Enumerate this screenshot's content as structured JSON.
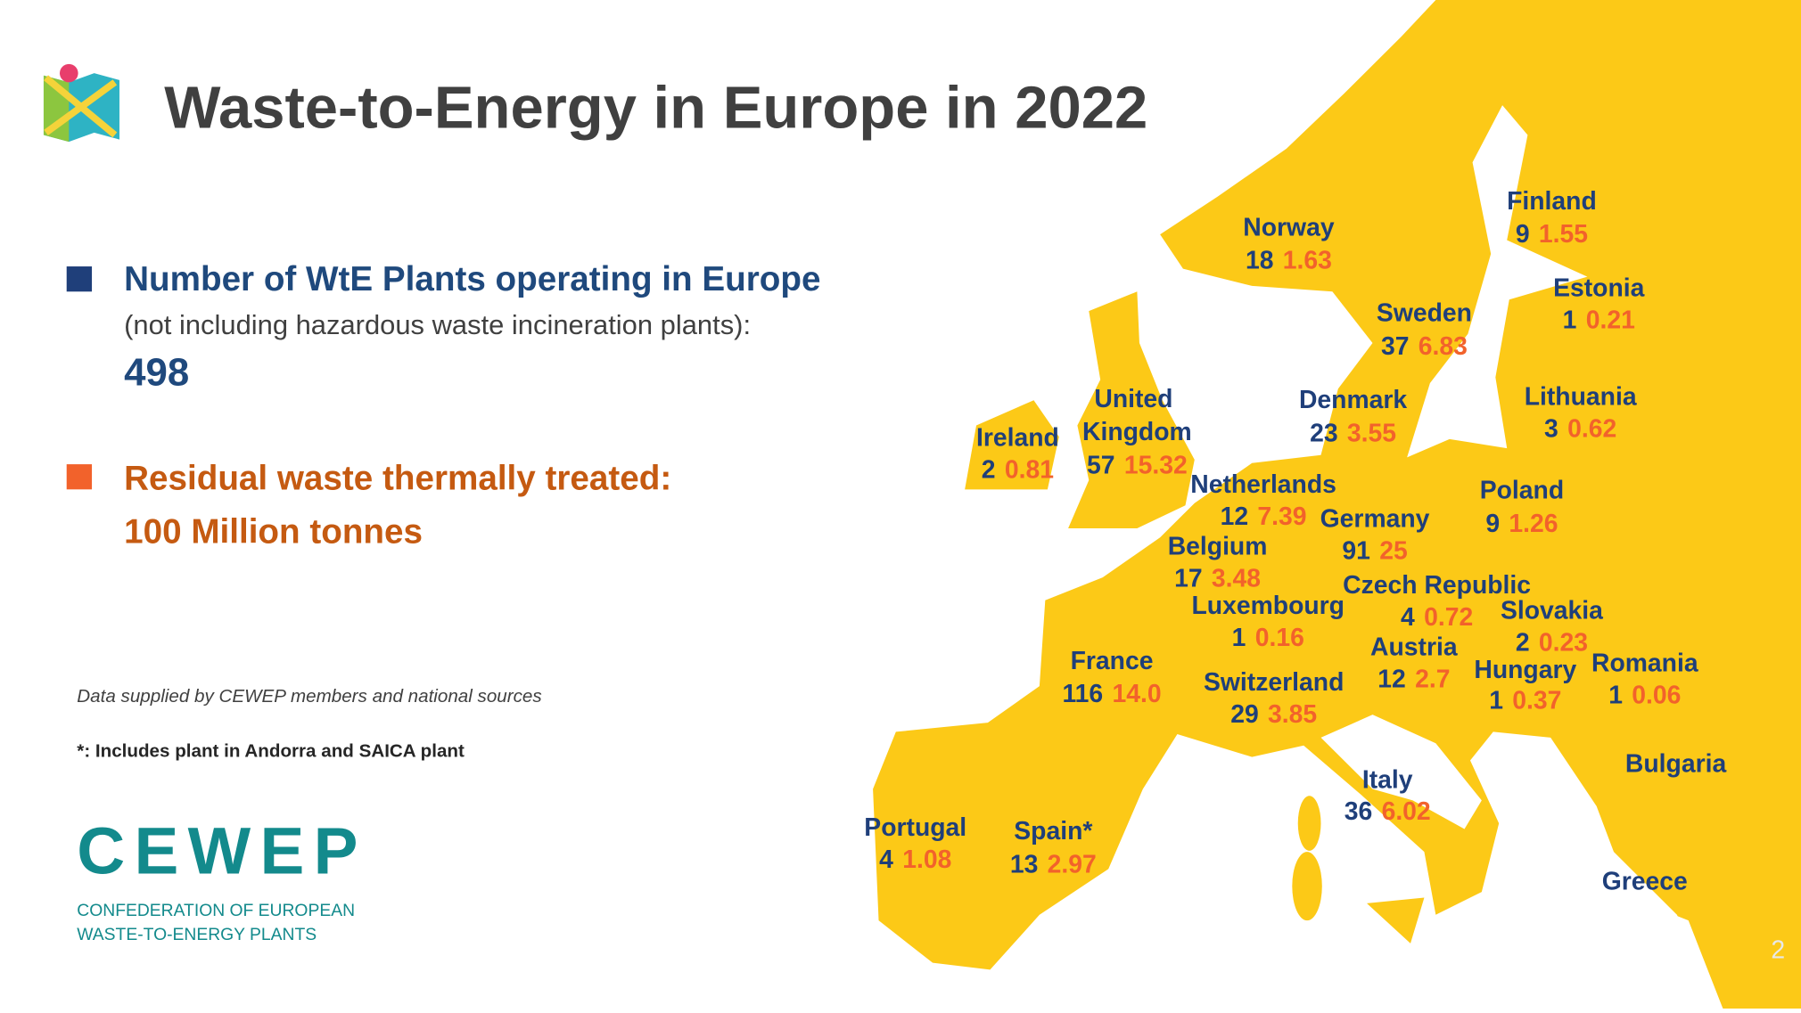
{
  "header": {
    "title": "Waste-to-Energy in Europe in 2022"
  },
  "stats": [
    {
      "label": "Number of WtE Plants operating in Europe",
      "note": "(not including hazardous waste incineration plants):",
      "value": "498"
    },
    {
      "label": "Residual waste thermally treated:",
      "value": "100 Million tonnes"
    }
  ],
  "footnotes": [
    "Data supplied by CEWEP members and national sources",
    "*: Includes plant in Andorra and SAICA plant"
  ],
  "logo": {
    "name": "CEWEP",
    "line1": "CONFEDERATION OF EUROPEAN",
    "line2": "WASTE-TO-ENERGY PLANTS"
  },
  "countries": [
    {
      "name": "Finland",
      "plants": "9",
      "tonnes": "1.55"
    },
    {
      "name": "Norway",
      "plants": "18",
      "tonnes": "1.63"
    },
    {
      "name": "Estonia",
      "plants": "1",
      "tonnes": "0.21"
    },
    {
      "name": "Sweden",
      "plants": "37",
      "tonnes": "6.83"
    },
    {
      "name": "Lithuania",
      "plants": "3",
      "tonnes": "0.62"
    },
    {
      "name": "Denmark",
      "plants": "23",
      "tonnes": "3.55"
    },
    {
      "name": "United Kingdom",
      "plants": "57",
      "tonnes": "15.32"
    },
    {
      "name": "Ireland",
      "plants": "2",
      "tonnes": "0.81"
    },
    {
      "name": "Netherlands",
      "plants": "12",
      "tonnes": "7.39"
    },
    {
      "name": "Poland",
      "plants": "9",
      "tonnes": "1.26"
    },
    {
      "name": "Germany",
      "plants": "91",
      "tonnes": "25"
    },
    {
      "name": "Belgium",
      "plants": "17",
      "tonnes": "3.48"
    },
    {
      "name": "Czech Republic",
      "plants": "4",
      "tonnes": "0.72"
    },
    {
      "name": "Luxembourg",
      "plants": "1",
      "tonnes": "0.16"
    },
    {
      "name": "Slovakia",
      "plants": "2",
      "tonnes": "0.23"
    },
    {
      "name": "Austria",
      "plants": "12",
      "tonnes": "2.7"
    },
    {
      "name": "France",
      "plants": "116",
      "tonnes": "14.0"
    },
    {
      "name": "Romania",
      "plants": "1",
      "tonnes": "0.06"
    },
    {
      "name": "Hungary",
      "plants": "1",
      "tonnes": "0.37"
    },
    {
      "name": "Switzerland",
      "plants": "29",
      "tonnes": "3.85"
    },
    {
      "name": "Bulgaria"
    },
    {
      "name": "Italy",
      "plants": "36",
      "tonnes": "6.02"
    },
    {
      "name": "Portugal",
      "plants": "4",
      "tonnes": "1.08"
    },
    {
      "name": "Spain*",
      "plants": "13",
      "tonnes": "2.97"
    },
    {
      "name": "Greece"
    }
  ],
  "page_number": "2"
}
